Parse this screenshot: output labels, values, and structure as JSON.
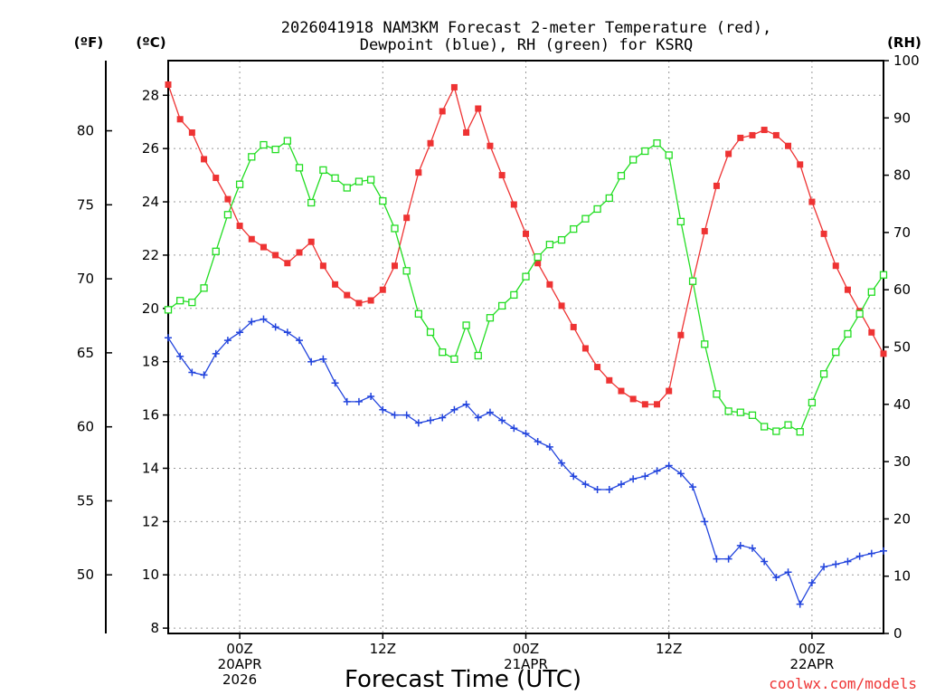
{
  "chart_data": {
    "type": "line",
    "title": [
      "2026041918 NAM3KM Forecast 2-meter Temperature (red),",
      "Dewpoint (blue), RH (green) for KSRQ"
    ],
    "xlabel": "Forecast Time (UTC)",
    "units": {
      "fahrenheit": "(ºF)",
      "celsius": "(ºC)",
      "rh": "(RH)"
    },
    "credit": "coolwx.com/models",
    "x_range_hours": [
      -6,
      54
    ],
    "xticks": [
      {
        "hour": 0,
        "lines": [
          "00Z",
          "20APR",
          "2026"
        ]
      },
      {
        "hour": 12,
        "lines": [
          "12Z"
        ]
      },
      {
        "hour": 24,
        "lines": [
          "00Z",
          "21APR"
        ]
      },
      {
        "hour": 36,
        "lines": [
          "12Z"
        ]
      },
      {
        "hour": 48,
        "lines": [
          "00Z",
          "22APR"
        ]
      }
    ],
    "y_celsius_range": [
      7.8,
      29.3
    ],
    "y_celsius_ticks": [
      8,
      10,
      12,
      14,
      16,
      18,
      20,
      22,
      24,
      26,
      28
    ],
    "y_fahrenheit_ticks": [
      50,
      55,
      60,
      65,
      70,
      75,
      80
    ],
    "y_rh_range": [
      0,
      100
    ],
    "y_rh_ticks": [
      0,
      10,
      20,
      30,
      40,
      50,
      60,
      70,
      80,
      90,
      100
    ],
    "series": [
      {
        "name": "2-meter Temperature",
        "units": "°C",
        "color": "#ee3333",
        "marker": "square-filled",
        "x": [
          -6,
          -5,
          -4,
          -3,
          -2,
          -1,
          0,
          1,
          2,
          3,
          4,
          5,
          6,
          7,
          8,
          9,
          10,
          11,
          12,
          13,
          14,
          15,
          16,
          17,
          18,
          19,
          20,
          21,
          22,
          23,
          24,
          25,
          26,
          27,
          28,
          29,
          30,
          31,
          32,
          33,
          34,
          35,
          36,
          37,
          38,
          39,
          40,
          41,
          42,
          43,
          44,
          45,
          46,
          47,
          48,
          49,
          50,
          51,
          52,
          53,
          54
        ],
        "values": [
          28.4,
          27.1,
          26.6,
          25.6,
          24.9,
          24.1,
          23.1,
          22.6,
          22.3,
          22.0,
          21.7,
          22.1,
          22.5,
          21.6,
          20.9,
          20.5,
          20.2,
          20.3,
          20.7,
          21.6,
          23.4,
          25.1,
          26.2,
          27.4,
          28.3,
          26.6,
          27.5,
          26.1,
          25.0,
          23.9,
          22.8,
          21.7,
          20.9,
          20.1,
          19.3,
          18.5,
          17.8,
          17.3,
          16.9,
          16.6,
          16.4,
          16.4,
          16.9,
          19.0,
          21.0,
          22.9,
          24.6,
          25.8,
          26.4,
          26.5,
          26.7,
          26.5,
          26.1,
          25.4,
          24.0,
          22.8,
          21.6,
          20.7,
          19.9,
          19.1,
          18.3
        ]
      },
      {
        "name": "Dewpoint",
        "units": "°C",
        "color": "#2244dd",
        "marker": "plus",
        "x": [
          -6,
          -5,
          -4,
          -3,
          -2,
          -1,
          0,
          1,
          2,
          3,
          4,
          5,
          6,
          7,
          8,
          9,
          10,
          11,
          12,
          13,
          14,
          15,
          16,
          17,
          18,
          19,
          20,
          21,
          22,
          23,
          24,
          25,
          26,
          27,
          28,
          29,
          30,
          31,
          32,
          33,
          34,
          35,
          36,
          37,
          38,
          39,
          40,
          41,
          42,
          43,
          44,
          45,
          46,
          47,
          48,
          49,
          50,
          51,
          52,
          53,
          54
        ],
        "values": [
          18.9,
          18.2,
          17.6,
          17.5,
          18.3,
          18.8,
          19.1,
          19.5,
          19.6,
          19.3,
          19.1,
          18.8,
          18.0,
          18.1,
          17.2,
          16.5,
          16.5,
          16.7,
          16.2,
          16.0,
          16.0,
          15.7,
          15.8,
          15.9,
          16.2,
          16.4,
          15.9,
          16.1,
          15.8,
          15.5,
          15.3,
          15.0,
          14.8,
          14.2,
          13.7,
          13.4,
          13.2,
          13.2,
          13.4,
          13.6,
          13.7,
          13.9,
          14.1,
          13.8,
          13.3,
          12.0,
          10.6,
          10.6,
          11.1,
          11.0,
          10.5,
          9.9,
          10.1,
          8.9,
          9.7,
          10.3,
          10.4,
          10.5,
          10.7,
          10.8,
          10.9
        ]
      },
      {
        "name": "Relative Humidity",
        "units": "%",
        "color": "#22dd22",
        "marker": "square-open",
        "x": [
          -6,
          -5,
          -4,
          -3,
          -2,
          -1,
          0,
          1,
          2,
          3,
          4,
          5,
          6,
          7,
          8,
          9,
          10,
          11,
          12,
          13,
          14,
          15,
          16,
          17,
          18,
          19,
          20,
          21,
          22,
          23,
          24,
          25,
          26,
          27,
          28,
          29,
          30,
          31,
          32,
          33,
          34,
          35,
          36,
          37,
          38,
          39,
          40,
          41,
          42,
          43,
          44,
          45,
          46,
          47,
          48,
          49,
          50,
          51,
          52,
          53,
          54
        ],
        "values": [
          56.5,
          58.1,
          57.8,
          60.3,
          66.7,
          73.1,
          78.4,
          83.2,
          85.3,
          84.5,
          86.0,
          81.3,
          75.2,
          80.9,
          79.5,
          77.8,
          78.9,
          79.2,
          75.5,
          70.7,
          63.3,
          55.8,
          52.6,
          49.1,
          47.9,
          53.8,
          48.5,
          55.1,
          57.2,
          59.1,
          62.3,
          65.7,
          67.9,
          68.7,
          70.6,
          72.4,
          74.1,
          76.0,
          79.9,
          82.7,
          84.2,
          85.6,
          83.5,
          71.9,
          61.5,
          50.5,
          41.8,
          38.8,
          38.6,
          38.1,
          36.1,
          35.3,
          36.4,
          35.2,
          40.3,
          45.3,
          49.1,
          52.3,
          55.8,
          59.6,
          62.6
        ]
      }
    ]
  }
}
